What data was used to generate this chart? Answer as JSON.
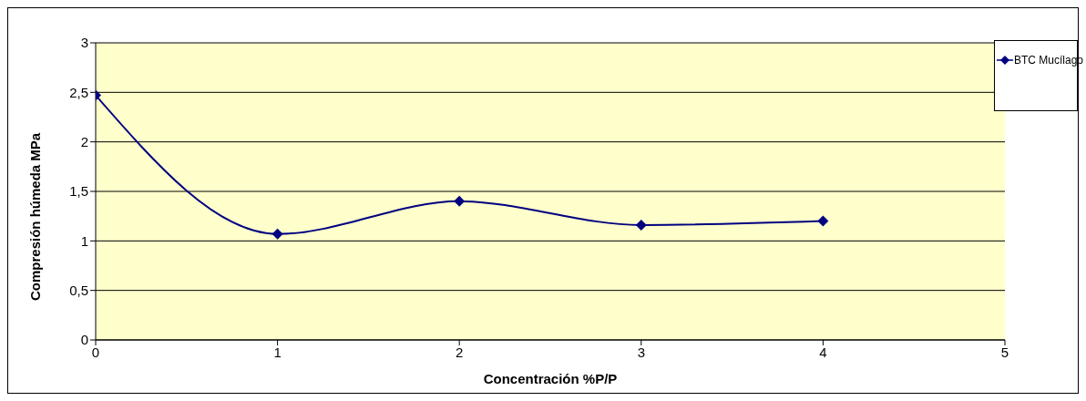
{
  "chart_data": {
    "type": "line",
    "xlabel": "Concentración %P/P",
    "ylabel": "Compresión húmeda  MPa",
    "x": [
      0,
      1,
      2,
      3,
      4
    ],
    "series": [
      {
        "name": "BTC Mucílago",
        "color": "#000080",
        "values": [
          2.47,
          1.07,
          1.4,
          1.16,
          1.2
        ]
      }
    ],
    "xlim": [
      0,
      5
    ],
    "xticks": [
      0,
      1,
      2,
      3,
      4,
      5
    ],
    "ylim": [
      0,
      3
    ],
    "yticks": [
      0,
      {
        "value": 0.5,
        "label": "0,5"
      },
      1,
      {
        "value": 1.5,
        "label": "1,5"
      },
      2,
      {
        "value": 2.5,
        "label": "2,5"
      },
      3
    ],
    "grid": "y",
    "legend": "top right",
    "marker": "diamond",
    "line_style": "solid"
  }
}
